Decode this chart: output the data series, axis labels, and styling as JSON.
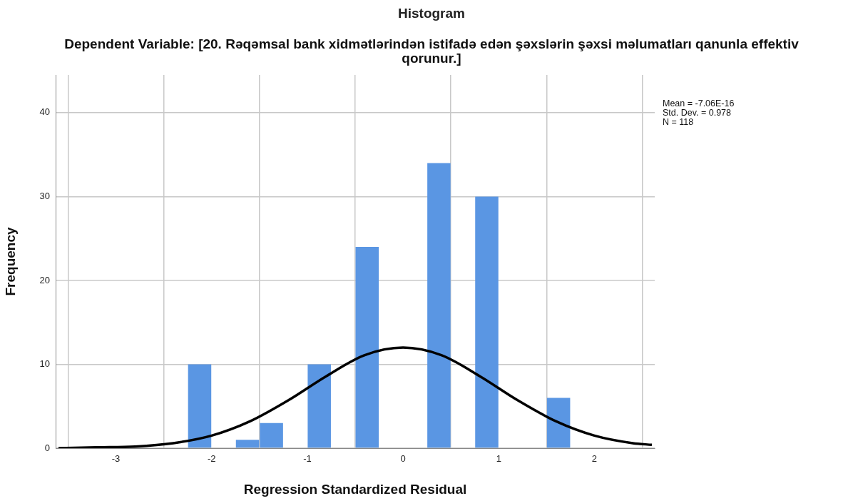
{
  "chart_data": {
    "type": "histogram",
    "title": "Histogram",
    "subtitle": "Dependent Variable: [20. Rəqəmsal bank xidmətlərindən istifadə edən şəxslərin şəxsi məlumatları qanunla effektiv qorunur.]",
    "xlabel": "Regression Standardized Residual",
    "ylabel": "Frequency",
    "bins": [
      -2.25,
      -2,
      -1.75,
      -1.5,
      -1.25,
      -1,
      -0.75,
      -0.5,
      -0.25,
      0,
      0.25,
      0.5,
      0.75,
      1,
      1.25,
      1.5,
      1.75
    ],
    "values": [
      10,
      0,
      1,
      3,
      0,
      10,
      0,
      24,
      0,
      0,
      34,
      0,
      30,
      0,
      0,
      6
    ],
    "color": "#5a96e3",
    "series": [
      {
        "type": "line",
        "color": "#000000",
        "x": [
          -3.6,
          -3.2,
          -2.8,
          -2.4,
          -2.0,
          -1.6,
          -1.2,
          -0.8,
          -0.4,
          0,
          0.4,
          0.8,
          1.2,
          1.6,
          2.0,
          2.4,
          2.6
        ],
        "values": [
          0,
          0.1,
          0.2,
          0.6,
          1.5,
          3.2,
          5.7,
          8.6,
          11.1,
          12,
          11.1,
          8.6,
          5.7,
          3.2,
          1.5,
          0.6,
          0.4
        ]
      }
    ],
    "marker": "none",
    "line_style": "solid",
    "xlim": [
      -3.63,
      2.63
    ],
    "xticks": [
      -3,
      -2,
      -1,
      0,
      1,
      2
    ],
    "ylim": [
      0,
      44.5
    ],
    "yticks": [
      0,
      10,
      20,
      30,
      40
    ],
    "grid": true,
    "annotations": [
      "Mean = -7.06E-16",
      "Std. Dev. = 0.978",
      "N = 118"
    ]
  }
}
